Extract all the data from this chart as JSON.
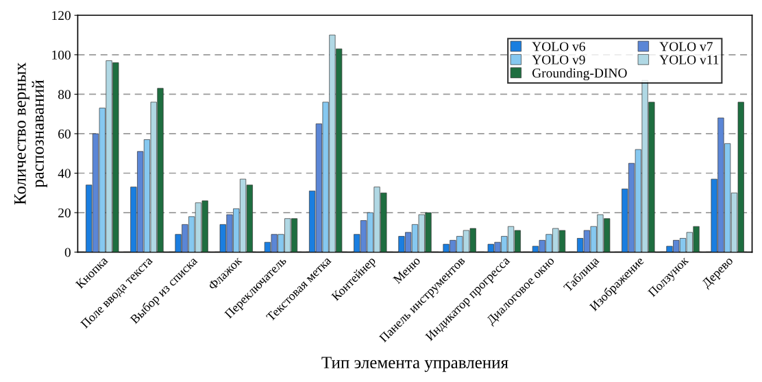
{
  "chart_data": {
    "type": "bar",
    "xlabel": "Тип элемента управления",
    "ylabel": "Количество верных\nраспознаваний",
    "categories": [
      "Кнопка",
      "Поле ввода текста",
      "Выбор из списка",
      "Флажок",
      "Переключатель",
      "Текстовая метка",
      "Контейнер",
      "Меню",
      "Панель инструментов",
      "Индикатор прогресса",
      "Диалоговое окно",
      "Таблица",
      "Изображение",
      "Ползунок",
      "Дерево"
    ],
    "series": [
      {
        "name": "YOLO v6",
        "color": "#1a7ee0",
        "values": [
          34,
          33,
          9,
          14,
          5,
          31,
          9,
          8,
          4,
          4,
          3,
          7,
          32,
          3,
          37
        ]
      },
      {
        "name": "YOLO v7",
        "color": "#5b86d6",
        "values": [
          60,
          51,
          14,
          19,
          9,
          65,
          16,
          10,
          6,
          5,
          6,
          11,
          45,
          6,
          68
        ]
      },
      {
        "name": "YOLO v9",
        "color": "#86c8f0",
        "values": [
          73,
          57,
          18,
          22,
          9,
          76,
          20,
          14,
          8,
          8,
          9,
          13,
          52,
          7,
          55
        ]
      },
      {
        "name": "YOLO v11",
        "color": "#b0d8e4",
        "values": [
          97,
          76,
          25,
          37,
          17,
          110,
          33,
          19,
          11,
          13,
          12,
          19,
          87,
          10,
          30
        ]
      },
      {
        "name": "Grounding-DINO",
        "color": "#1e6e40",
        "values": [
          96,
          83,
          26,
          34,
          17,
          103,
          30,
          20,
          12,
          11,
          11,
          17,
          76,
          13,
          76
        ]
      }
    ],
    "ylim": [
      0,
      120
    ],
    "yticks": [
      0,
      20,
      40,
      60,
      80,
      100,
      120
    ],
    "grid": "y",
    "legend": "top right"
  }
}
